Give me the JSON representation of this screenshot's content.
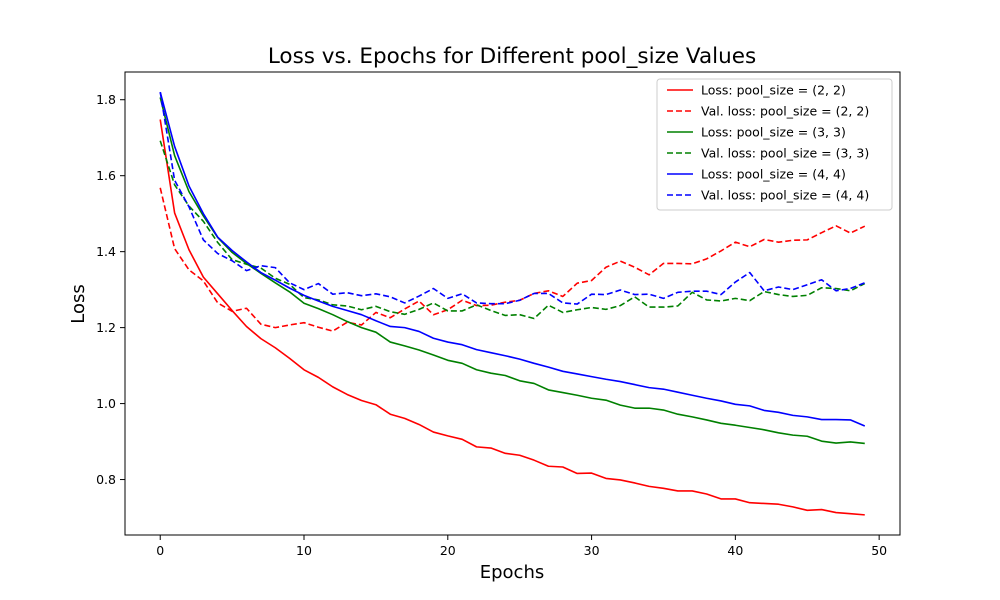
{
  "chart_data": {
    "type": "line",
    "title": "Loss vs. Epochs for Different pool_size Values",
    "xlabel": "Epochs",
    "ylabel": "Loss",
    "xlim": [
      -2.45,
      51.45
    ],
    "ylim": [
      0.654,
      1.873
    ],
    "xticks": [
      0,
      10,
      20,
      30,
      40,
      50
    ],
    "yticks": [
      0.8,
      1.0,
      1.2,
      1.4,
      1.6,
      1.8
    ],
    "grid": false,
    "legend_position": "top-right",
    "x": [
      0,
      1,
      2,
      3,
      4,
      5,
      6,
      7,
      8,
      9,
      10,
      11,
      12,
      13,
      14,
      15,
      16,
      17,
      18,
      19,
      20,
      21,
      22,
      23,
      24,
      25,
      26,
      27,
      28,
      29,
      30,
      31,
      32,
      33,
      34,
      35,
      36,
      37,
      38,
      39,
      40,
      41,
      42,
      43,
      44,
      45,
      46,
      47,
      48,
      49
    ],
    "series": [
      {
        "name": "Loss: pool_size = (2, 2)",
        "color": "#ff0000",
        "dash": "solid",
        "values": [
          1.748,
          1.502,
          1.405,
          1.333,
          1.289,
          1.245,
          1.203,
          1.171,
          1.147,
          1.119,
          1.089,
          1.069,
          1.044,
          1.024,
          1.008,
          0.997,
          0.972,
          0.961,
          0.945,
          0.925,
          0.915,
          0.906,
          0.886,
          0.883,
          0.869,
          0.864,
          0.851,
          0.835,
          0.833,
          0.816,
          0.817,
          0.803,
          0.799,
          0.791,
          0.782,
          0.777,
          0.77,
          0.77,
          0.762,
          0.749,
          0.749,
          0.739,
          0.737,
          0.735,
          0.728,
          0.719,
          0.721,
          0.713,
          0.71,
          0.707
        ]
      },
      {
        "name": "Val. loss: pool_size = (2, 2)",
        "color": "#ff0000",
        "dash": "dashed",
        "values": [
          1.568,
          1.408,
          1.352,
          1.323,
          1.265,
          1.243,
          1.251,
          1.209,
          1.2,
          1.207,
          1.213,
          1.201,
          1.191,
          1.214,
          1.207,
          1.24,
          1.226,
          1.249,
          1.27,
          1.234,
          1.247,
          1.272,
          1.258,
          1.259,
          1.267,
          1.272,
          1.29,
          1.297,
          1.282,
          1.317,
          1.324,
          1.359,
          1.375,
          1.359,
          1.339,
          1.369,
          1.369,
          1.368,
          1.381,
          1.402,
          1.425,
          1.413,
          1.432,
          1.425,
          1.43,
          1.431,
          1.45,
          1.468,
          1.449,
          1.467
        ]
      },
      {
        "name": "Loss: pool_size = (3, 3)",
        "color": "#008000",
        "dash": "solid",
        "values": [
          1.806,
          1.653,
          1.558,
          1.494,
          1.437,
          1.398,
          1.369,
          1.343,
          1.318,
          1.294,
          1.264,
          1.25,
          1.234,
          1.216,
          1.2,
          1.188,
          1.162,
          1.152,
          1.141,
          1.128,
          1.114,
          1.106,
          1.089,
          1.08,
          1.074,
          1.06,
          1.053,
          1.036,
          1.029,
          1.022,
          1.014,
          1.009,
          0.996,
          0.988,
          0.988,
          0.983,
          0.972,
          0.965,
          0.957,
          0.948,
          0.943,
          0.937,
          0.931,
          0.923,
          0.917,
          0.914,
          0.901,
          0.896,
          0.899,
          0.895
        ]
      },
      {
        "name": "Val. loss: pool_size = (3, 3)",
        "color": "#008000",
        "dash": "dashed",
        "values": [
          1.692,
          1.576,
          1.52,
          1.48,
          1.424,
          1.379,
          1.367,
          1.357,
          1.33,
          1.314,
          1.279,
          1.273,
          1.26,
          1.257,
          1.247,
          1.256,
          1.242,
          1.235,
          1.248,
          1.265,
          1.244,
          1.244,
          1.26,
          1.245,
          1.232,
          1.234,
          1.224,
          1.259,
          1.24,
          1.247,
          1.253,
          1.248,
          1.258,
          1.281,
          1.254,
          1.254,
          1.257,
          1.293,
          1.273,
          1.27,
          1.277,
          1.271,
          1.295,
          1.287,
          1.282,
          1.285,
          1.305,
          1.303,
          1.297,
          1.316
        ]
      },
      {
        "name": "Loss: pool_size = (4, 4)",
        "color": "#0000ff",
        "dash": "solid",
        "values": [
          1.82,
          1.677,
          1.573,
          1.5,
          1.438,
          1.403,
          1.373,
          1.345,
          1.325,
          1.304,
          1.285,
          1.27,
          1.256,
          1.245,
          1.234,
          1.218,
          1.203,
          1.2,
          1.19,
          1.172,
          1.162,
          1.155,
          1.142,
          1.134,
          1.126,
          1.117,
          1.106,
          1.096,
          1.085,
          1.078,
          1.071,
          1.064,
          1.058,
          1.05,
          1.042,
          1.038,
          1.03,
          1.022,
          1.014,
          1.007,
          0.998,
          0.994,
          0.982,
          0.977,
          0.969,
          0.965,
          0.958,
          0.958,
          0.957,
          0.941
        ]
      },
      {
        "name": "Val. loss: pool_size = (4, 4)",
        "color": "#0000ff",
        "dash": "dashed",
        "values": [
          1.82,
          1.588,
          1.518,
          1.431,
          1.395,
          1.376,
          1.35,
          1.363,
          1.358,
          1.318,
          1.3,
          1.316,
          1.288,
          1.292,
          1.284,
          1.289,
          1.281,
          1.265,
          1.283,
          1.303,
          1.277,
          1.289,
          1.265,
          1.263,
          1.263,
          1.272,
          1.29,
          1.29,
          1.265,
          1.262,
          1.288,
          1.287,
          1.299,
          1.287,
          1.288,
          1.277,
          1.293,
          1.296,
          1.296,
          1.287,
          1.32,
          1.345,
          1.297,
          1.307,
          1.3,
          1.313,
          1.326,
          1.297,
          1.303,
          1.318
        ]
      }
    ]
  }
}
